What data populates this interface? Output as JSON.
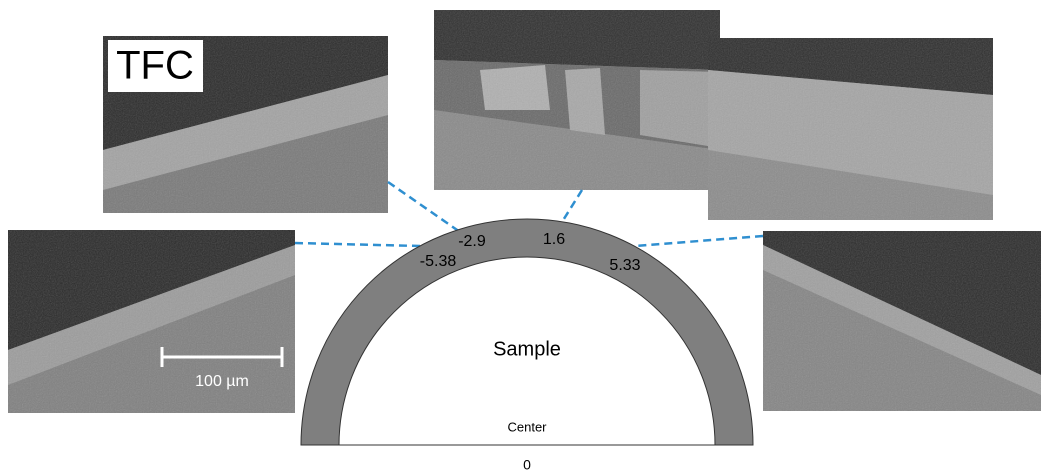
{
  "tfc_label": "TFC",
  "positions": [
    {
      "label": "-2.9"
    },
    {
      "label": "1.6"
    },
    {
      "label": "-5.38"
    },
    {
      "label": "5.33"
    }
  ],
  "sample_label": "Sample",
  "center_label": "Center",
  "center_value": "0",
  "scale_bar": "100 µm"
}
